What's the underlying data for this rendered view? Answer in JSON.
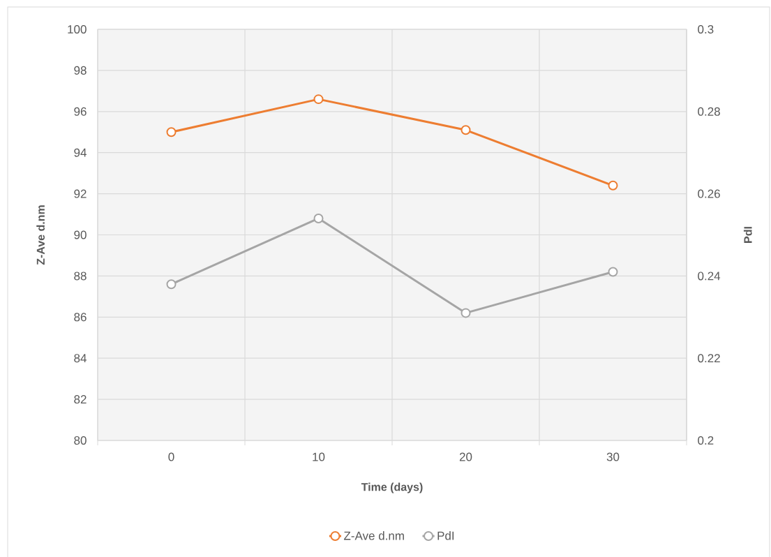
{
  "chart_data": {
    "type": "line",
    "xlabel": "Time (days)",
    "ylabel": "Z-Ave d.nm",
    "y2label": "PdI",
    "categories": [
      "0",
      "10",
      "20",
      "30"
    ],
    "series": [
      {
        "name": "Z-Ave d.nm",
        "color": "#ed7d31",
        "values": [
          95.0,
          96.6,
          95.1,
          92.4
        ]
      },
      {
        "name": "PdI",
        "color": "#a5a5a5",
        "values": [
          0.238,
          0.254,
          0.231,
          0.241
        ],
        "axis": "y2"
      }
    ],
    "ylim": [
      80,
      100
    ],
    "yticks": [
      80,
      82,
      84,
      86,
      88,
      90,
      92,
      94,
      96,
      98,
      100
    ],
    "y2lim": [
      0.2,
      0.3
    ],
    "y2ticks": [
      0.2,
      0.22,
      0.24,
      0.26,
      0.28,
      0.3
    ],
    "grid": true,
    "legend": "bottom",
    "marker": "circle",
    "line_style": "solid"
  }
}
